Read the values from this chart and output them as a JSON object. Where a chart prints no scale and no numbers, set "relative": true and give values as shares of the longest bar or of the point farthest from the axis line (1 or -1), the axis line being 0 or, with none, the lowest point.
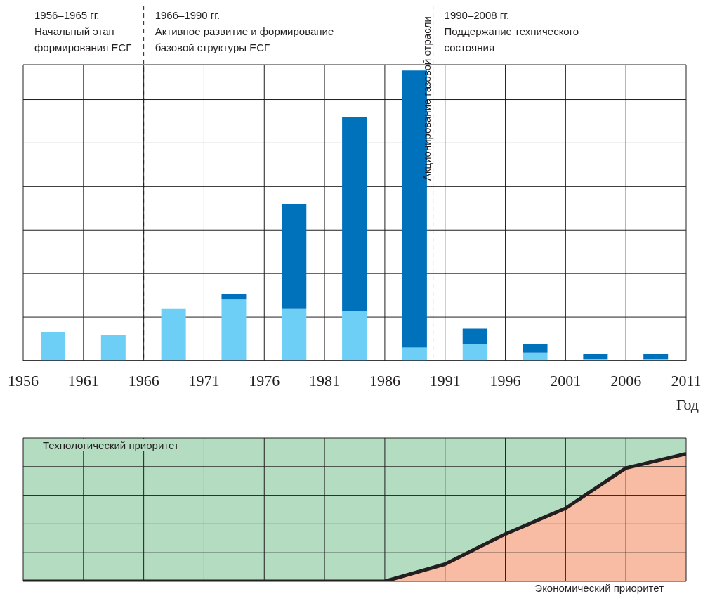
{
  "chart_data": [
    {
      "type": "bar",
      "stacked": true,
      "relative": true,
      "xlabel": "Год",
      "x": [
        1958.5,
        1963.5,
        1968.5,
        1973.5,
        1978.5,
        1983.5,
        1988.5,
        1993.5,
        1998.5,
        2003.5,
        2008.5
      ],
      "xlim": [
        1956,
        2011
      ],
      "xticks": [
        1956,
        1961,
        1966,
        1971,
        1976,
        1981,
        1986,
        1991,
        1996,
        2001,
        2006,
        2011
      ],
      "grid": true,
      "series": [
        {
          "color": "#6dcff6",
          "values": [
            0.097,
            0.088,
            0.18,
            0.21,
            0.18,
            0.17,
            0.045,
            0.056,
            0.027,
            0.007,
            0.007
          ]
        },
        {
          "color": "#0072bc",
          "values": [
            null,
            null,
            null,
            0.02,
            0.36,
            0.67,
            0.955,
            0.054,
            0.03,
            0.016,
            0.016
          ]
        }
      ],
      "ref_lines": [
        {
          "axis": "x",
          "value": 1966,
          "line_style": "dashed"
        },
        {
          "axis": "x",
          "value": 1990,
          "line_style": "dashed",
          "label": "Акционирование газовой отрасли"
        },
        {
          "axis": "x",
          "value": 2008,
          "line_style": "dashed"
        }
      ],
      "annotations": [
        "1956–1965 гг.\nНачальный этап\nформирования ЕСГ",
        "1966–1990 гг.\nАктивное развитие и формирование\nбазовой структуры ЕСГ",
        "1990–2008 гг.\nПоддержание технического\nсостояния"
      ]
    },
    {
      "type": "area",
      "stacked": true,
      "relative": true,
      "x": [
        1956,
        1961,
        1966,
        1971,
        1976,
        1981,
        1986,
        1991,
        1996,
        2001,
        2006,
        2011
      ],
      "xlim": [
        1956,
        2011
      ],
      "xticks": [
        1956,
        1961,
        1966,
        1971,
        1976,
        1981,
        1986,
        1991,
        1996,
        2001,
        2006,
        2011
      ],
      "tick_labels": false,
      "grid": true,
      "series": [
        {
          "name": "Экономический приоритет",
          "color": "#f8bba3",
          "values": [
            0,
            0,
            0,
            0,
            0,
            0,
            0,
            0.12,
            0.33,
            0.51,
            0.79,
            0.89
          ]
        },
        {
          "name": "Технологический приоритет",
          "color": "#b3dcc1",
          "values": [
            1,
            1,
            1,
            1,
            1,
            1,
            1,
            0.88,
            0.67,
            0.49,
            0.21,
            0.11
          ]
        }
      ]
    }
  ]
}
